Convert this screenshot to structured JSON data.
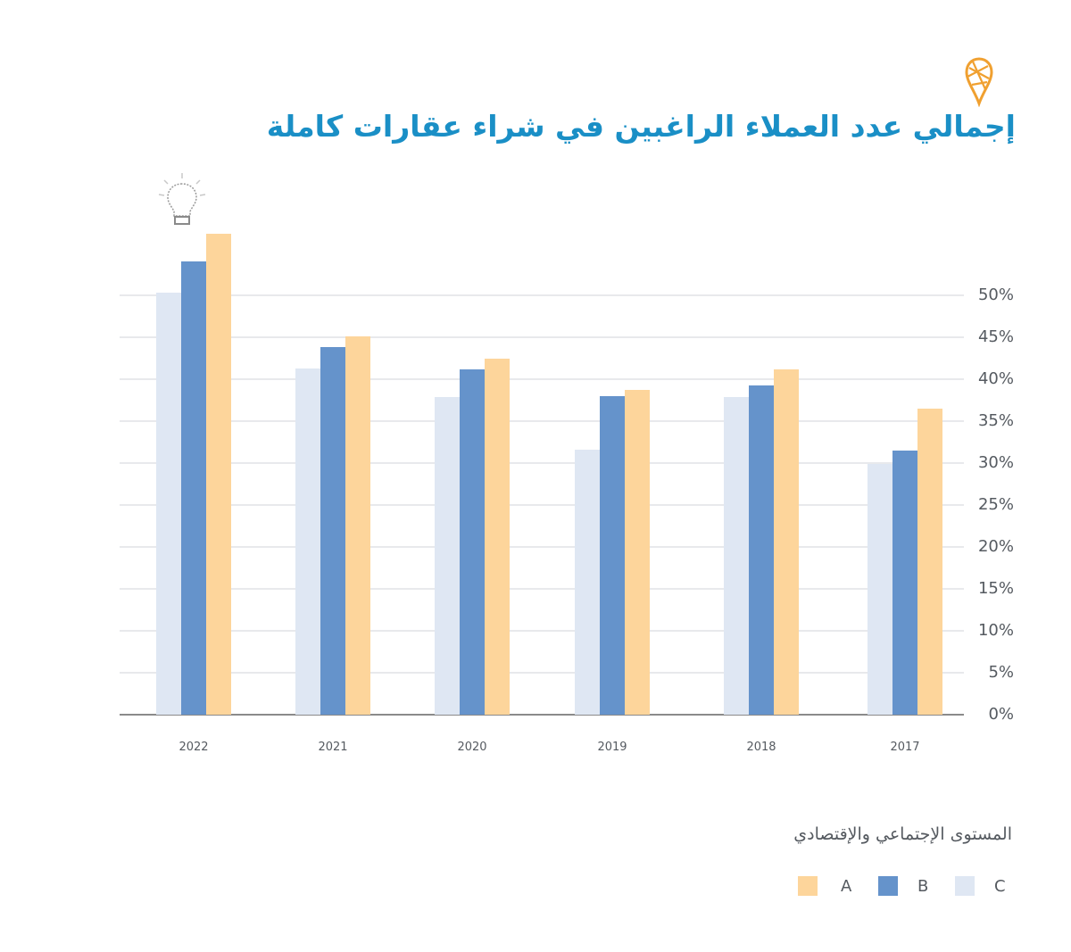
{
  "header": {
    "title": "إجمالي عدد العملاء الراغبين في شراء عقارات كاملة",
    "logo_icon": "location-pin-icon",
    "decor_icon": "lightbulb-icon"
  },
  "colors": {
    "A": "#fdd59b",
    "B": "#6593cb",
    "C": "#dfe7f3",
    "title": "#1a8fc6",
    "accent": "#f0a030"
  },
  "legend": {
    "title": "المستوى الإجتماعي والإقتصادي",
    "items": [
      {
        "label": "A",
        "color": "#fdd59b"
      },
      {
        "label": "B",
        "color": "#6593cb"
      },
      {
        "label": "C",
        "color": "#dfe7f3"
      }
    ]
  },
  "chart_data": {
    "type": "bar",
    "title": "إجمالي عدد العملاء الراغبين في شراء عقارات كاملة",
    "xlabel": "",
    "ylabel": "",
    "categories": [
      "2022",
      "2021",
      "2020",
      "2019",
      "2018",
      "2017"
    ],
    "series": [
      {
        "name": "C",
        "color": "#dfe7f3",
        "values": [
          50.3,
          41.3,
          37.9,
          31.6,
          37.9,
          29.9
        ]
      },
      {
        "name": "B",
        "color": "#6593cb",
        "values": [
          54.0,
          43.8,
          41.2,
          38.0,
          39.3,
          31.5
        ]
      },
      {
        "name": "A",
        "color": "#fdd59b",
        "values": [
          57.3,
          45.1,
          42.4,
          38.7,
          41.2,
          36.5
        ]
      }
    ],
    "yticks": [
      "0%",
      "5%",
      "10%",
      "15%",
      "20%",
      "25%",
      "30%",
      "35%",
      "40%",
      "45%",
      "50%"
    ],
    "ylim": [
      0,
      50
    ],
    "grid": true,
    "y_axis_position": "right",
    "legend_position": "bottom-right",
    "legend_title": "المستوى الإجتماعي والإقتصادي"
  }
}
